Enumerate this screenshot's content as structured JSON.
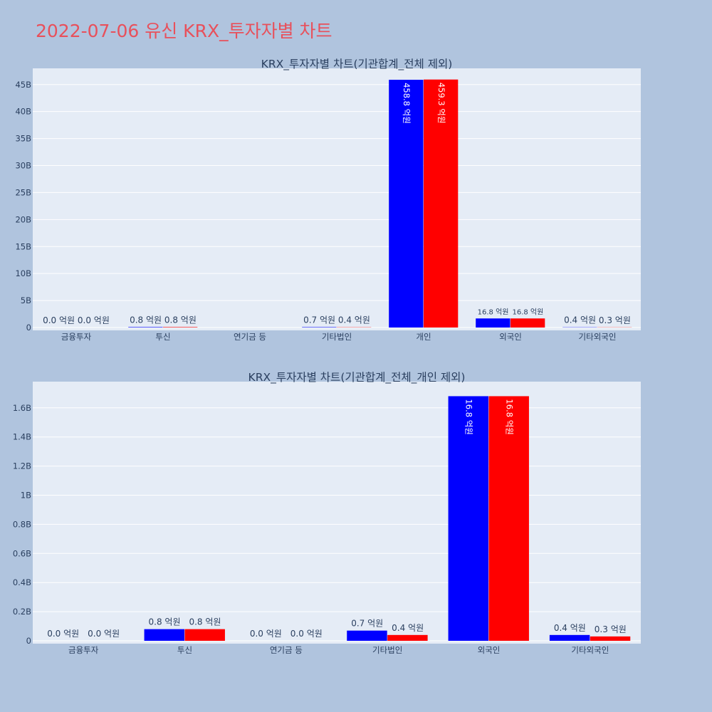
{
  "title": "2022-07-06 유신 KRX_투자자별 차트",
  "colors": {
    "series1": "#0000ff",
    "series2": "#ff0000",
    "plot_bg": "#e5ecf6",
    "page_bg": "#b0c4de",
    "title": "#e8505b"
  },
  "chart_data": [
    {
      "type": "bar",
      "title": "KRX_투자자별 차트(기관합계_전체 제외)",
      "categories": [
        "금융투자",
        "투신",
        "연기금 등",
        "기타법인",
        "개인",
        "외국인",
        "기타외국인"
      ],
      "ylim": [
        0,
        48000000000
      ],
      "y_ticks": [
        0,
        5000000000,
        10000000000,
        15000000000,
        20000000000,
        25000000000,
        30000000000,
        35000000000,
        40000000000,
        45000000000
      ],
      "y_tick_labels": [
        "0",
        "5B",
        "10B",
        "15B",
        "20B",
        "25B",
        "30B",
        "35B",
        "40B",
        "45B"
      ],
      "grid": true,
      "series": [
        {
          "values": [
            0,
            80000000,
            null,
            70000000,
            45880000000,
            1680000000,
            40000000
          ],
          "labels": [
            "0.0 억원",
            "0.8 억원",
            "",
            "0.7 억원",
            "458.8 억원",
            "16.8 억원",
            "0.4 억원"
          ]
        },
        {
          "values": [
            0,
            80000000,
            null,
            40000000,
            45930000000,
            1680000000,
            30000000
          ],
          "labels": [
            "0.0 억원",
            "0.8 억원",
            "",
            "0.4 억원",
            "459.3 억원",
            "16.8 억원",
            "0.3 억원"
          ]
        }
      ]
    },
    {
      "type": "bar",
      "title": "KRX_투자자별 차트(기관합계_전체_개인 제외)",
      "categories": [
        "금융투자",
        "투신",
        "연기금 등",
        "기타법인",
        "외국인",
        "기타외국인"
      ],
      "ylim": [
        0,
        1780000000
      ],
      "y_ticks": [
        0,
        200000000,
        400000000,
        600000000,
        800000000,
        1000000000,
        1200000000,
        1400000000,
        1600000000
      ],
      "y_tick_labels": [
        "0",
        "0.2B",
        "0.4B",
        "0.6B",
        "0.8B",
        "1B",
        "1.2B",
        "1.4B",
        "1.6B"
      ],
      "grid": true,
      "series": [
        {
          "values": [
            0,
            80000000,
            0,
            70000000,
            1680000000,
            40000000
          ],
          "labels": [
            "0.0 억원",
            "0.8 억원",
            "0.0 억원",
            "0.7 억원",
            "16.8 억원",
            "0.4 억원"
          ]
        },
        {
          "values": [
            0,
            80000000,
            0,
            40000000,
            1680000000,
            30000000
          ],
          "labels": [
            "0.0 억원",
            "0.8 억원",
            "0.0 억원",
            "0.4 억원",
            "16.8 억원",
            "0.3 억원"
          ]
        }
      ]
    }
  ]
}
